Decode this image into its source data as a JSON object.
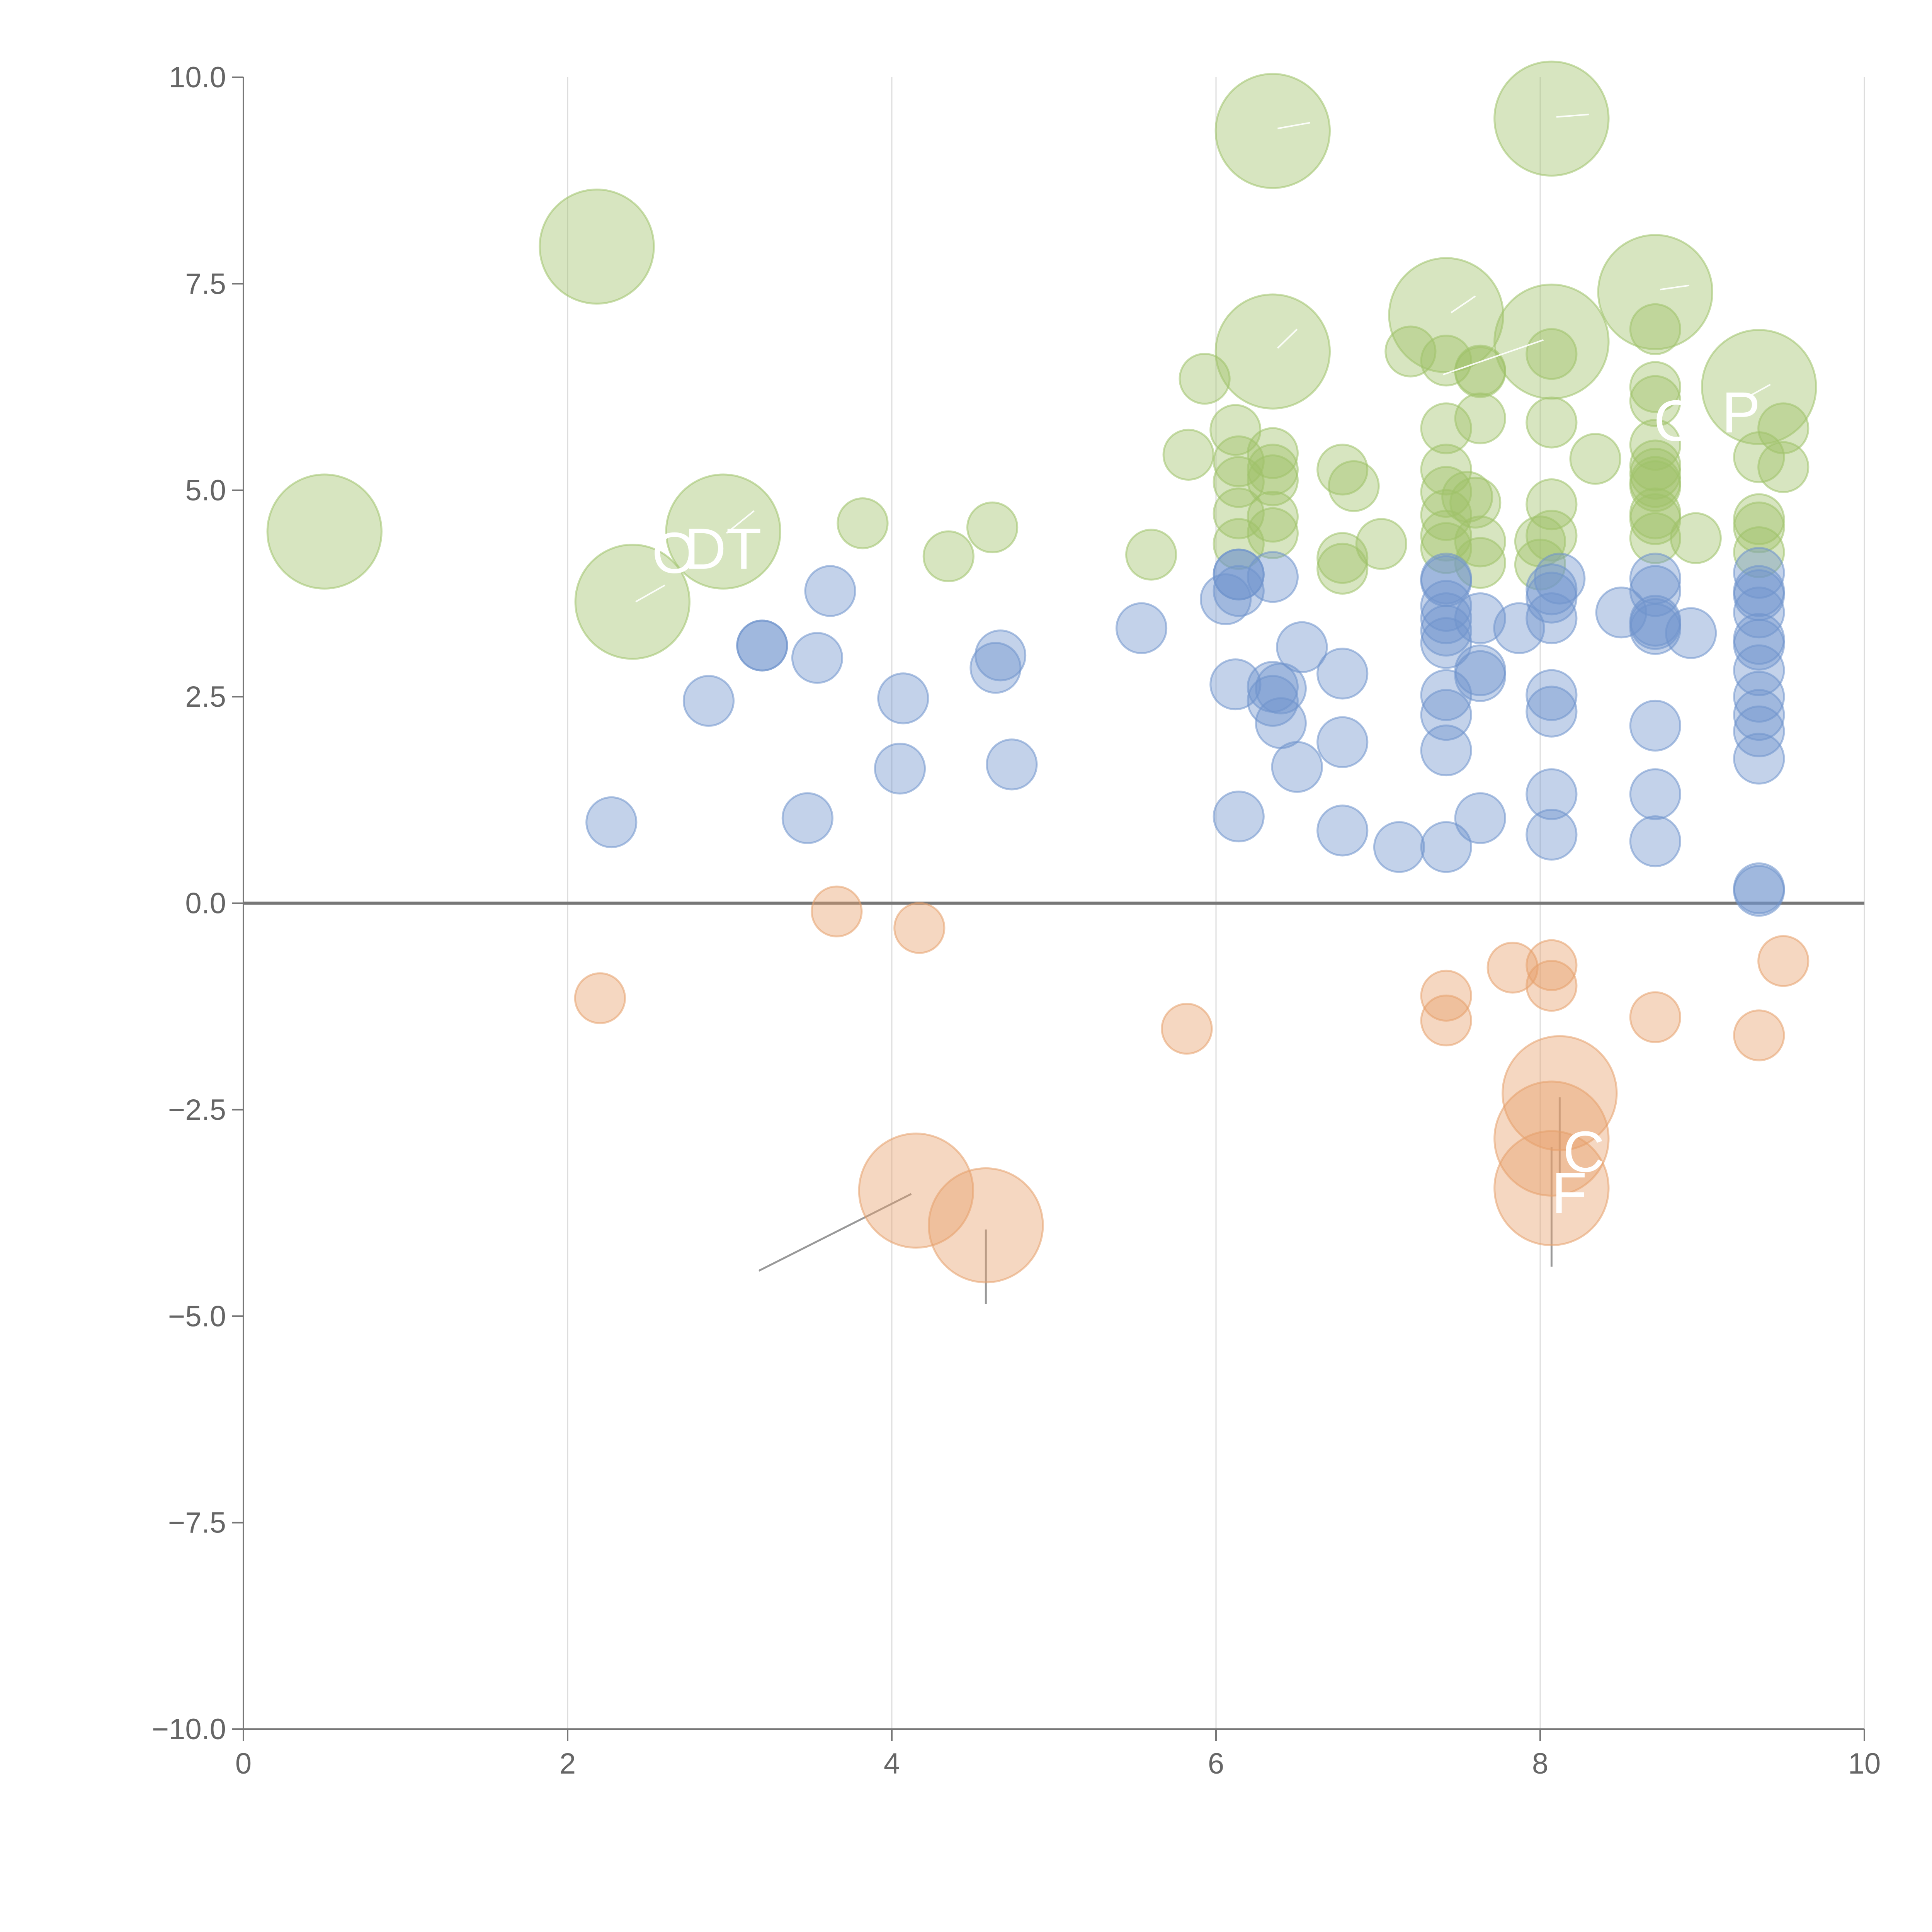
{
  "chart_data": {
    "type": "scatter",
    "title": "",
    "xlabel": "",
    "ylabel": "",
    "xlim": [
      0,
      10
    ],
    "ylim": [
      -10,
      10
    ],
    "x_ticks": [
      "0",
      "2",
      "4",
      "6",
      "8",
      "10"
    ],
    "y_ticks": [
      "10.0",
      "7.5",
      "5.0",
      "2.5",
      "0.0",
      "−2.5",
      "−5.0",
      "−7.5",
      "−10.0"
    ],
    "grid": "vertical",
    "legend": "none",
    "colors": {
      "green": "#9fc26a",
      "blue": "#6f93cc",
      "orange": "#e6a06c"
    },
    "series": [
      {
        "name": "green",
        "color": "#9fc26a",
        "points": [
          {
            "x": 0.5,
            "y": 4.5,
            "r": 32
          },
          {
            "x": 2.18,
            "y": 7.95,
            "r": 32
          },
          {
            "x": 2.96,
            "y": 4.5,
            "r": 32
          },
          {
            "x": 2.4,
            "y": 3.65,
            "r": 32
          },
          {
            "x": 3.82,
            "y": 4.6,
            "r": 14
          },
          {
            "x": 4.35,
            "y": 4.2,
            "r": 14
          },
          {
            "x": 4.62,
            "y": 4.55,
            "r": 14
          },
          {
            "x": 5.6,
            "y": 4.22,
            "r": 14
          },
          {
            "x": 5.83,
            "y": 5.43,
            "r": 14
          },
          {
            "x": 5.93,
            "y": 6.35,
            "r": 14
          },
          {
            "x": 6.12,
            "y": 5.73,
            "r": 14
          },
          {
            "x": 6.14,
            "y": 5.35,
            "r": 14
          },
          {
            "x": 6.14,
            "y": 5.1,
            "r": 14
          },
          {
            "x": 6.14,
            "y": 4.72,
            "r": 14
          },
          {
            "x": 6.14,
            "y": 4.35,
            "r": 14
          },
          {
            "x": 6.35,
            "y": 9.35,
            "r": 32
          },
          {
            "x": 6.35,
            "y": 6.68,
            "r": 32
          },
          {
            "x": 6.35,
            "y": 5.45,
            "r": 14
          },
          {
            "x": 6.35,
            "y": 5.25,
            "r": 14
          },
          {
            "x": 6.35,
            "y": 5.12,
            "r": 14
          },
          {
            "x": 6.35,
            "y": 4.68,
            "r": 14
          },
          {
            "x": 6.35,
            "y": 4.48,
            "r": 14
          },
          {
            "x": 6.78,
            "y": 5.25,
            "r": 14
          },
          {
            "x": 6.85,
            "y": 5.05,
            "r": 14
          },
          {
            "x": 6.78,
            "y": 4.18,
            "r": 14
          },
          {
            "x": 6.78,
            "y": 4.05,
            "r": 14
          },
          {
            "x": 7.02,
            "y": 4.35,
            "r": 14
          },
          {
            "x": 7.2,
            "y": 6.68,
            "r": 14
          },
          {
            "x": 7.42,
            "y": 7.12,
            "r": 32
          },
          {
            "x": 7.42,
            "y": 6.57,
            "r": 14
          },
          {
            "x": 7.42,
            "y": 5.75,
            "r": 14
          },
          {
            "x": 7.42,
            "y": 5.25,
            "r": 14
          },
          {
            "x": 7.42,
            "y": 4.98,
            "r": 14
          },
          {
            "x": 7.42,
            "y": 4.7,
            "r": 14
          },
          {
            "x": 7.42,
            "y": 4.45,
            "r": 14
          },
          {
            "x": 7.42,
            "y": 4.3,
            "r": 14
          },
          {
            "x": 7.55,
            "y": 4.92,
            "r": 14
          },
          {
            "x": 7.63,
            "y": 6.43,
            "r": 14
          },
          {
            "x": 7.63,
            "y": 6.45,
            "r": 14
          },
          {
            "x": 7.63,
            "y": 5.87,
            "r": 14
          },
          {
            "x": 7.63,
            "y": 4.38,
            "r": 14
          },
          {
            "x": 7.63,
            "y": 4.12,
            "r": 14
          },
          {
            "x": 7.6,
            "y": 4.85,
            "r": 14
          },
          {
            "x": 8.07,
            "y": 9.5,
            "r": 32
          },
          {
            "x": 8.07,
            "y": 6.8,
            "r": 32
          },
          {
            "x": 8.07,
            "y": 6.65,
            "r": 14
          },
          {
            "x": 8.07,
            "y": 5.82,
            "r": 14
          },
          {
            "x": 8.07,
            "y": 4.83,
            "r": 14
          },
          {
            "x": 8.07,
            "y": 4.45,
            "r": 14
          },
          {
            "x": 8.0,
            "y": 4.38,
            "r": 14
          },
          {
            "x": 8.0,
            "y": 4.1,
            "r": 14
          },
          {
            "x": 8.34,
            "y": 5.38,
            "r": 14
          },
          {
            "x": 8.71,
            "y": 7.4,
            "r": 32
          },
          {
            "x": 8.71,
            "y": 6.95,
            "r": 14
          },
          {
            "x": 8.71,
            "y": 6.25,
            "r": 14
          },
          {
            "x": 8.71,
            "y": 6.08,
            "r": 14
          },
          {
            "x": 8.71,
            "y": 5.55,
            "r": 14
          },
          {
            "x": 8.71,
            "y": 5.3,
            "r": 14
          },
          {
            "x": 8.71,
            "y": 5.2,
            "r": 14
          },
          {
            "x": 8.71,
            "y": 5.1,
            "r": 14
          },
          {
            "x": 8.71,
            "y": 5.05,
            "r": 14
          },
          {
            "x": 8.71,
            "y": 4.72,
            "r": 14
          },
          {
            "x": 8.71,
            "y": 4.65,
            "r": 14
          },
          {
            "x": 8.71,
            "y": 4.42,
            "r": 14
          },
          {
            "x": 8.96,
            "y": 4.42,
            "r": 14
          },
          {
            "x": 9.35,
            "y": 6.25,
            "r": 32
          },
          {
            "x": 9.35,
            "y": 5.4,
            "r": 14
          },
          {
            "x": 9.35,
            "y": 4.65,
            "r": 14
          },
          {
            "x": 9.35,
            "y": 4.55,
            "r": 14
          },
          {
            "x": 9.35,
            "y": 4.25,
            "r": 14
          },
          {
            "x": 9.5,
            "y": 5.75,
            "r": 14
          },
          {
            "x": 9.5,
            "y": 5.28,
            "r": 14
          }
        ]
      },
      {
        "name": "blue",
        "color": "#6f93cc",
        "points": [
          {
            "x": 2.27,
            "y": 0.98,
            "r": 14
          },
          {
            "x": 2.87,
            "y": 2.45,
            "r": 14
          },
          {
            "x": 3.2,
            "y": 3.12,
            "r": 14
          },
          {
            "x": 3.2,
            "y": 3.12,
            "r": 14
          },
          {
            "x": 3.48,
            "y": 1.03,
            "r": 14
          },
          {
            "x": 3.54,
            "y": 2.97,
            "r": 14
          },
          {
            "x": 3.62,
            "y": 3.78,
            "r": 14
          },
          {
            "x": 4.05,
            "y": 1.63,
            "r": 14
          },
          {
            "x": 4.07,
            "y": 2.48,
            "r": 14
          },
          {
            "x": 4.64,
            "y": 2.85,
            "r": 14
          },
          {
            "x": 4.67,
            "y": 3.0,
            "r": 14
          },
          {
            "x": 4.74,
            "y": 1.68,
            "r": 14
          },
          {
            "x": 5.54,
            "y": 3.33,
            "r": 14
          },
          {
            "x": 6.06,
            "y": 3.68,
            "r": 14
          },
          {
            "x": 6.12,
            "y": 2.65,
            "r": 14
          },
          {
            "x": 6.14,
            "y": 1.05,
            "r": 14
          },
          {
            "x": 6.14,
            "y": 3.98,
            "r": 14
          },
          {
            "x": 6.14,
            "y": 3.78,
            "r": 14
          },
          {
            "x": 6.14,
            "y": 3.98,
            "r": 14
          },
          {
            "x": 6.35,
            "y": 3.95,
            "r": 14
          },
          {
            "x": 6.35,
            "y": 2.62,
            "r": 14
          },
          {
            "x": 6.35,
            "y": 2.45,
            "r": 14
          },
          {
            "x": 6.4,
            "y": 2.18,
            "r": 14
          },
          {
            "x": 6.4,
            "y": 2.6,
            "r": 14
          },
          {
            "x": 6.5,
            "y": 1.65,
            "r": 14
          },
          {
            "x": 6.53,
            "y": 3.1,
            "r": 14
          },
          {
            "x": 6.78,
            "y": 2.78,
            "r": 14
          },
          {
            "x": 6.78,
            "y": 1.95,
            "r": 14
          },
          {
            "x": 6.78,
            "y": 0.88,
            "r": 14
          },
          {
            "x": 7.13,
            "y": 0.68,
            "r": 14
          },
          {
            "x": 7.42,
            "y": 0.68,
            "r": 14
          },
          {
            "x": 7.42,
            "y": 1.85,
            "r": 14
          },
          {
            "x": 7.42,
            "y": 2.28,
            "r": 14
          },
          {
            "x": 7.42,
            "y": 2.52,
            "r": 14
          },
          {
            "x": 7.42,
            "y": 3.15,
            "r": 14
          },
          {
            "x": 7.42,
            "y": 3.3,
            "r": 14
          },
          {
            "x": 7.42,
            "y": 3.45,
            "r": 14
          },
          {
            "x": 7.42,
            "y": 3.6,
            "r": 14
          },
          {
            "x": 7.42,
            "y": 3.9,
            "r": 14
          },
          {
            "x": 7.42,
            "y": 3.93,
            "r": 14
          },
          {
            "x": 7.63,
            "y": 1.03,
            "r": 14
          },
          {
            "x": 7.63,
            "y": 2.75,
            "r": 14
          },
          {
            "x": 7.63,
            "y": 2.82,
            "r": 14
          },
          {
            "x": 7.63,
            "y": 3.45,
            "r": 14
          },
          {
            "x": 7.87,
            "y": 3.33,
            "r": 14
          },
          {
            "x": 8.07,
            "y": 0.83,
            "r": 14
          },
          {
            "x": 8.07,
            "y": 1.32,
            "r": 14
          },
          {
            "x": 8.07,
            "y": 2.32,
            "r": 14
          },
          {
            "x": 8.07,
            "y": 2.52,
            "r": 14
          },
          {
            "x": 8.07,
            "y": 3.45,
            "r": 14
          },
          {
            "x": 8.07,
            "y": 3.7,
            "r": 14
          },
          {
            "x": 8.07,
            "y": 3.8,
            "r": 14
          },
          {
            "x": 8.12,
            "y": 3.93,
            "r": 14
          },
          {
            "x": 8.5,
            "y": 3.52,
            "r": 14
          },
          {
            "x": 8.71,
            "y": 0.75,
            "r": 14
          },
          {
            "x": 8.71,
            "y": 1.32,
            "r": 14
          },
          {
            "x": 8.71,
            "y": 2.15,
            "r": 14
          },
          {
            "x": 8.71,
            "y": 3.32,
            "r": 14
          },
          {
            "x": 8.71,
            "y": 3.38,
            "r": 14
          },
          {
            "x": 8.71,
            "y": 3.42,
            "r": 14
          },
          {
            "x": 8.71,
            "y": 3.78,
            "r": 14
          },
          {
            "x": 8.71,
            "y": 3.93,
            "r": 14
          },
          {
            "x": 8.93,
            "y": 3.27,
            "r": 14
          },
          {
            "x": 9.35,
            "y": 0.15,
            "r": 14
          },
          {
            "x": 9.35,
            "y": 0.18,
            "r": 14
          },
          {
            "x": 9.35,
            "y": 1.75,
            "r": 14
          },
          {
            "x": 9.35,
            "y": 2.08,
            "r": 14
          },
          {
            "x": 9.35,
            "y": 2.28,
            "r": 14
          },
          {
            "x": 9.35,
            "y": 2.5,
            "r": 14
          },
          {
            "x": 9.35,
            "y": 2.82,
            "r": 14
          },
          {
            "x": 9.35,
            "y": 3.13,
            "r": 14
          },
          {
            "x": 9.35,
            "y": 3.2,
            "r": 14
          },
          {
            "x": 9.35,
            "y": 3.52,
            "r": 14
          },
          {
            "x": 9.35,
            "y": 3.73,
            "r": 14
          },
          {
            "x": 9.35,
            "y": 3.78,
            "r": 14
          },
          {
            "x": 9.35,
            "y": 4.0,
            "r": 14
          }
        ]
      },
      {
        "name": "orange",
        "color": "#e6a06c",
        "points": [
          {
            "x": 2.2,
            "y": -1.15,
            "r": 14
          },
          {
            "x": 3.66,
            "y": -0.1,
            "r": 14
          },
          {
            "x": 4.17,
            "y": -0.3,
            "r": 14
          },
          {
            "x": 4.15,
            "y": -3.48,
            "r": 32
          },
          {
            "x": 4.58,
            "y": -3.9,
            "r": 32
          },
          {
            "x": 5.82,
            "y": -1.52,
            "r": 14
          },
          {
            "x": 7.42,
            "y": -1.12,
            "r": 14
          },
          {
            "x": 7.42,
            "y": -1.42,
            "r": 14
          },
          {
            "x": 7.83,
            "y": -0.78,
            "r": 14
          },
          {
            "x": 8.07,
            "y": -0.75,
            "r": 14
          },
          {
            "x": 8.07,
            "y": -1.0,
            "r": 14
          },
          {
            "x": 8.12,
            "y": -2.3,
            "r": 32
          },
          {
            "x": 8.07,
            "y": -2.85,
            "r": 32
          },
          {
            "x": 8.07,
            "y": -3.45,
            "r": 32
          },
          {
            "x": 8.71,
            "y": -1.38,
            "r": 14
          },
          {
            "x": 9.35,
            "y": -1.6,
            "r": 14
          },
          {
            "x": 9.5,
            "y": -0.7,
            "r": 14
          }
        ]
      }
    ],
    "leaders": [
      {
        "x1": 3.18,
        "y1": -4.45,
        "x2": 4.12,
        "y2": -3.52,
        "kind": "gray"
      },
      {
        "x1": 4.58,
        "y1": -3.95,
        "x2": 4.58,
        "y2": -4.85,
        "kind": "gray"
      },
      {
        "x1": 8.12,
        "y1": -2.35,
        "x2": 8.12,
        "y2": -3.3,
        "kind": "gray"
      },
      {
        "x1": 8.07,
        "y1": -2.95,
        "x2": 8.07,
        "y2": -4.4,
        "kind": "gray"
      },
      {
        "x1": 2.98,
        "y1": 4.48,
        "x2": 3.15,
        "y2": 4.75,
        "kind": "white"
      },
      {
        "x1": 2.42,
        "y1": 3.65,
        "x2": 2.6,
        "y2": 3.85,
        "kind": "white"
      },
      {
        "x1": 6.38,
        "y1": 9.38,
        "x2": 6.58,
        "y2": 9.45,
        "kind": "white"
      },
      {
        "x1": 6.38,
        "y1": 6.72,
        "x2": 6.5,
        "y2": 6.95,
        "kind": "white"
      },
      {
        "x1": 7.45,
        "y1": 7.15,
        "x2": 7.6,
        "y2": 7.35,
        "kind": "white"
      },
      {
        "x1": 8.1,
        "y1": 9.52,
        "x2": 8.3,
        "y2": 9.55,
        "kind": "white"
      },
      {
        "x1": 7.4,
        "y1": 6.4,
        "x2": 8.02,
        "y2": 6.82,
        "kind": "white"
      },
      {
        "x1": 8.74,
        "y1": 7.43,
        "x2": 8.92,
        "y2": 7.48,
        "kind": "white"
      },
      {
        "x1": 9.3,
        "y1": 6.15,
        "x2": 9.42,
        "y2": 6.28,
        "kind": "white"
      }
    ],
    "annotations": [
      {
        "text": "O",
        "x": 2.52,
        "y": 4.0
      },
      {
        "text": "DT",
        "x": 2.72,
        "y": 4.05
      },
      {
        "text": "C",
        "x": 8.7,
        "y": 5.6
      },
      {
        "text": "P",
        "x": 9.12,
        "y": 5.7
      },
      {
        "text": "C",
        "x": 8.14,
        "y": -3.25
      },
      {
        "text": "F",
        "x": 8.07,
        "y": -3.75
      }
    ]
  }
}
